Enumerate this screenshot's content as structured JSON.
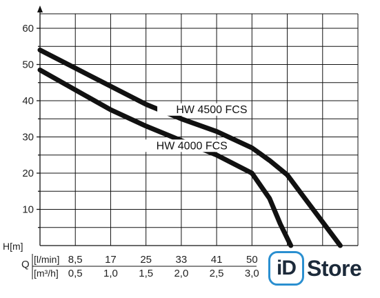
{
  "chart_data": {
    "type": "line",
    "ylabel": "H[m]",
    "ylim": [
      0,
      64
    ],
    "yticks": [
      "10",
      "20",
      "30",
      "40",
      "50",
      "60"
    ],
    "ytick_values": [
      10,
      20,
      30,
      40,
      50,
      60
    ],
    "x_axis_label": "Q",
    "x_rows": [
      {
        "unit": "[l/min]",
        "ticks": [
          "8,5",
          "17",
          "25",
          "33",
          "41",
          "50"
        ]
      },
      {
        "unit": "[m³/h]",
        "ticks": [
          "0,5",
          "1,0",
          "1,5",
          "2,0",
          "2,5",
          "3,0"
        ]
      }
    ],
    "x_tick_values": [
      0.5,
      1.0,
      1.5,
      2.0,
      2.5,
      3.0
    ],
    "xlim": [
      0,
      4.5
    ],
    "grid": true,
    "series": [
      {
        "name": "HW 4500 FCS",
        "x": [
          0.0,
          0.5,
          1.0,
          1.5,
          2.0,
          2.5,
          3.0,
          3.25,
          3.5,
          3.75,
          4.0,
          4.25
        ],
        "y": [
          54,
          49,
          44,
          39,
          35,
          31.5,
          27,
          23.5,
          19.5,
          13,
          6.5,
          0
        ]
      },
      {
        "name": "HW 4000 FCS",
        "x": [
          0.0,
          0.5,
          1.0,
          1.5,
          2.0,
          2.5,
          3.0,
          3.25,
          3.4,
          3.55
        ],
        "y": [
          48.5,
          43,
          37.5,
          33,
          29,
          25,
          20,
          13,
          6,
          0
        ]
      }
    ]
  },
  "watermark": {
    "mark": "iD",
    "word": "Store",
    "accent": "#2a8fd0"
  }
}
